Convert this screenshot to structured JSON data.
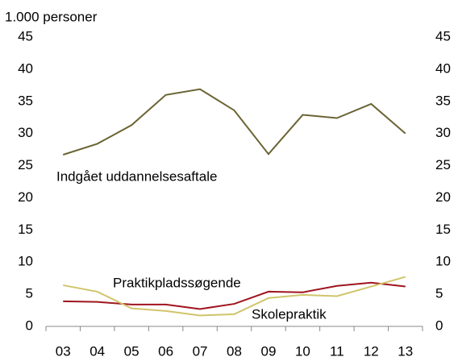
{
  "chart_data": {
    "type": "line",
    "y_axis_label": "1.000 personer",
    "categories": [
      "03",
      "04",
      "05",
      "06",
      "07",
      "08",
      "09",
      "10",
      "11",
      "12",
      "13"
    ],
    "series": [
      {
        "name": "Indgået uddannelsesaftale",
        "color": "#6b6433",
        "values": [
          26.7,
          28.4,
          31.3,
          36.0,
          36.9,
          33.6,
          26.8,
          32.9,
          32.4,
          34.6,
          30.0
        ]
      },
      {
        "name": "Praktikpladssøgende",
        "color": "#a0141e",
        "values": [
          3.9,
          3.8,
          3.4,
          3.4,
          2.7,
          3.5,
          5.4,
          5.3,
          6.3,
          6.8,
          6.2
        ]
      },
      {
        "name": "Skolepraktik",
        "color": "#d0c56a",
        "values": [
          6.4,
          5.4,
          2.8,
          2.4,
          1.7,
          1.9,
          4.4,
          4.9,
          4.7,
          6.2,
          7.7
        ]
      }
    ],
    "ylim": [
      0,
      45
    ],
    "yticks": [
      0,
      5,
      10,
      15,
      20,
      25,
      30,
      35,
      40,
      45
    ],
    "y2lim": [
      0,
      45
    ],
    "y2ticks": [
      0,
      5,
      10,
      15,
      20,
      25,
      30,
      35,
      40,
      45
    ],
    "grid": false
  }
}
